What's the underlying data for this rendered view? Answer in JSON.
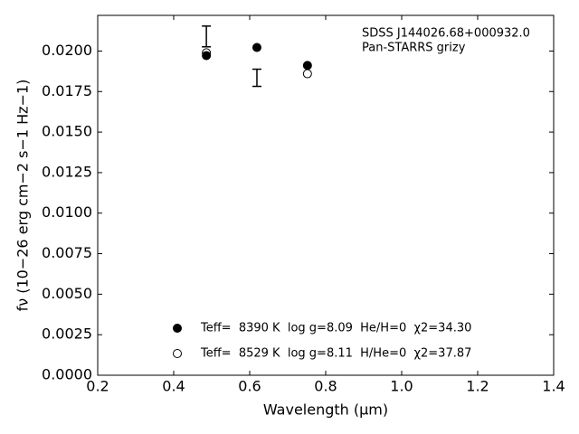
{
  "chart_data": {
    "type": "scatter",
    "xlabel": "Wavelength (μm)",
    "ylabel": "fν (10−26 erg cm−2 s−1 Hz−1)",
    "annotations": [
      "SDSS J144026.68+000932.0",
      "Pan-STARRS grizy"
    ],
    "xlim": [
      0.2,
      1.4
    ],
    "xticks": [
      0.2,
      0.4,
      0.6,
      0.8,
      {
        "value": 1.0,
        "label": "1.0"
      },
      1.2,
      1.4
    ],
    "ylim": [
      0,
      0.0222
    ],
    "yticks": [
      {
        "value": 0,
        "label": "0.0000"
      },
      0.0025,
      {
        "value": 0.005,
        "label": "0.0050"
      },
      0.0075,
      {
        "value": 0.01,
        "label": "0.0100"
      },
      0.0125,
      {
        "value": 0.015,
        "label": "0.0150"
      },
      0.0175,
      {
        "value": 0.02,
        "label": "0.0200"
      }
    ],
    "observed": {
      "color": "#000000",
      "x": [
        0.486,
        0.619
      ],
      "values": [
        0.0209,
        0.01835
      ],
      "errors": [
        0.00064,
        0.00053
      ]
    },
    "series": [
      {
        "name": "Teff=  8390 K  log g=8.09  He/H=0  χ2=34.30",
        "marker": "filled",
        "color": "#000000",
        "x": [
          0.486,
          0.619,
          0.752
        ],
        "values": [
          0.01972,
          0.02022,
          0.01911
        ]
      },
      {
        "name": "Teff=  8529 K  log g=8.11  H/He=0  χ2=37.87",
        "marker": "open",
        "color": "#000000",
        "x": [
          0.486,
          0.752
        ],
        "values": [
          0.01989,
          0.0186
        ]
      }
    ]
  }
}
